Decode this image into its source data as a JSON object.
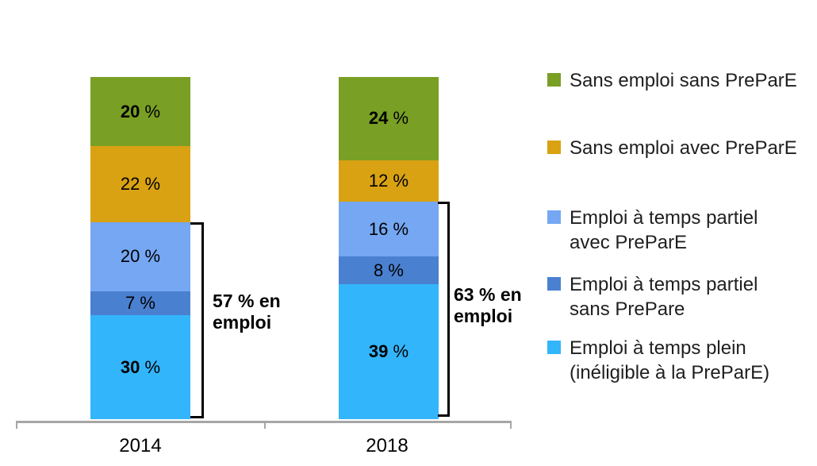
{
  "chart_data": {
    "type": "bar",
    "stacked": true,
    "title": "",
    "xlabel": "",
    "ylabel": "",
    "grid": false,
    "legend_position": "right",
    "axis_color": "#A6A6A6",
    "label_suffix": " %",
    "categories": [
      "2014",
      "2018"
    ],
    "series": [
      {
        "name": "Emploi à temps plein (inéligible à la PreParE)",
        "color": "#33B5FB",
        "values": [
          30,
          39
        ],
        "label_bold": true
      },
      {
        "name": "Emploi à temps partiel sans PrePare",
        "color": "#4A80D0",
        "values": [
          7,
          8
        ],
        "label_bold": false
      },
      {
        "name": "Emploi à temps partiel avec PreParE",
        "color": "#75A7F3",
        "values": [
          20,
          16
        ],
        "label_bold": false
      },
      {
        "name": "Sans emploi avec PreParE",
        "color": "#D9A213",
        "values": [
          22,
          12
        ],
        "label_bold": false
      },
      {
        "name": "Sans emploi sans PreParE",
        "color": "#799F24",
        "values": [
          20,
          24
        ],
        "label_bold": true
      }
    ],
    "annotations": [
      {
        "category": "2014",
        "lines": [
          "57 % en",
          "emploi"
        ]
      },
      {
        "category": "2018",
        "lines": [
          "63 % en",
          "emploi"
        ]
      }
    ]
  },
  "legend": {
    "items": [
      {
        "color": "#799F24",
        "lines": [
          "Sans emploi sans PreParE"
        ]
      },
      {
        "color": "#D9A213",
        "lines": [
          "Sans emploi avec PreParE"
        ]
      },
      {
        "color": "#75A7F3",
        "lines": [
          "Emploi à temps partiel",
          "avec PreParE"
        ]
      },
      {
        "color": "#4A80D0",
        "lines": [
          "Emploi à temps partiel",
          "sans PrePare"
        ]
      },
      {
        "color": "#33B5FB",
        "lines": [
          "Emploi à temps plein",
          "(inéligible à la PreParE)"
        ]
      }
    ]
  }
}
